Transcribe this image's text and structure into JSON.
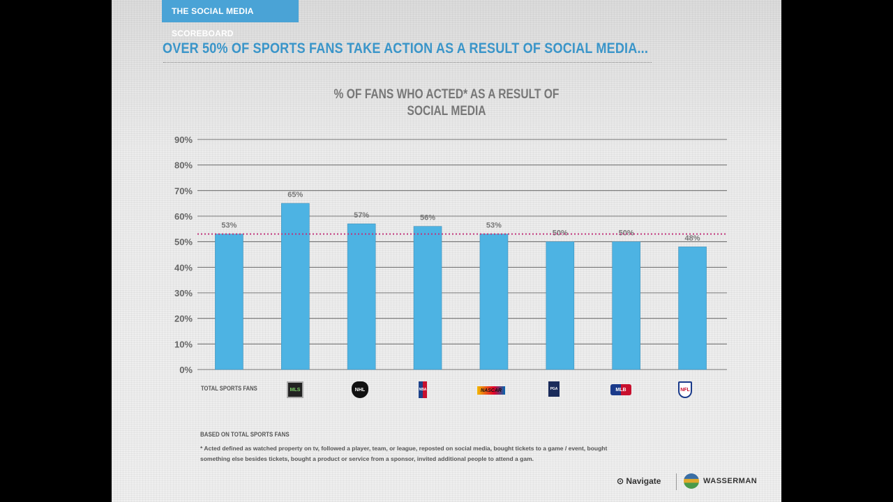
{
  "header": {
    "tag": "THE SOCIAL MEDIA SCOREBOARD",
    "headline": "OVER 50% OF SPORTS FANS TAKE ACTION AS A RESULT OF SOCIAL MEDIA..."
  },
  "chart_data": {
    "type": "bar",
    "title_line1": "% OF FANS WHO ACTED* AS A RESULT OF",
    "title_line2": "SOCIAL MEDIA",
    "categories": [
      "TOTAL SPORTS FANS",
      "MLS",
      "NHL",
      "NBA",
      "NASCAR",
      "PGA TOUR",
      "MLB",
      "NFL"
    ],
    "values": [
      53,
      65,
      57,
      56,
      53,
      50,
      50,
      48
    ],
    "data_labels": [
      "53%",
      "65%",
      "57%",
      "56%",
      "53%",
      "50%",
      "50%",
      "48%"
    ],
    "yticks": [
      "0%",
      "10%",
      "20%",
      "30%",
      "40%",
      "50%",
      "60%",
      "70%",
      "80%",
      "90%"
    ],
    "ylim": [
      0,
      90
    ],
    "reference_line": 53,
    "grid": true,
    "bar_color": "#4db3e3",
    "reference_color": "#c0337a"
  },
  "logos": {
    "mls": "MLS",
    "nhl": "NHL",
    "nba": "NBA",
    "nascar": "NASCAR",
    "pga": "PGA",
    "mlb": "MLB",
    "nfl": "NFL"
  },
  "footnote": {
    "title": "BASED ON TOTAL SPORTS FANS",
    "text": "* Acted defined as watched property on tv, followed a player, team, or league, reposted on social media, bought tickets to a game / event, bought something else besides tickets, bought a product or service from a sponsor, invited additional people to attend a gam."
  },
  "brands": {
    "navigate": "Navigate",
    "wasserman": "WASSERMAN"
  }
}
